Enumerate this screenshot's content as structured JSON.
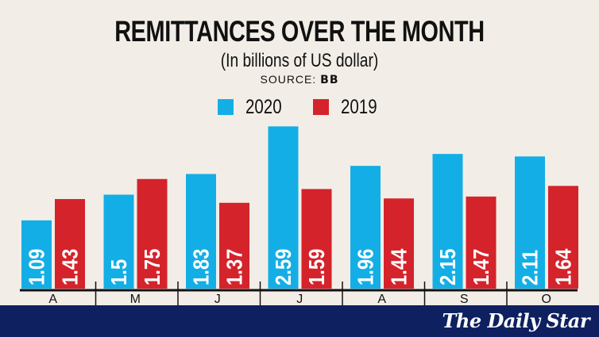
{
  "chart_data": {
    "type": "bar",
    "title": "REMITTANCES OVER THE MONTH",
    "subtitle": "(In billions of US dollar)",
    "source_label": "SOURCE:",
    "source": "BB",
    "categories": [
      "April",
      "May",
      "June",
      "July",
      "August",
      "September",
      "October"
    ],
    "series": [
      {
        "name": "2020",
        "color": "#14aee6",
        "values": [
          1.09,
          1.5,
          1.83,
          2.59,
          1.96,
          2.15,
          2.11
        ]
      },
      {
        "name": "2019",
        "color": "#d5232b",
        "values": [
          1.43,
          1.75,
          1.37,
          1.59,
          1.44,
          1.47,
          1.64
        ]
      }
    ],
    "ylim": [
      0,
      2.8
    ],
    "grid": false,
    "legend": "top-center",
    "data_labels": true
  },
  "branding": {
    "logo": "The Daily Star",
    "banner_color": "#0e2060"
  }
}
